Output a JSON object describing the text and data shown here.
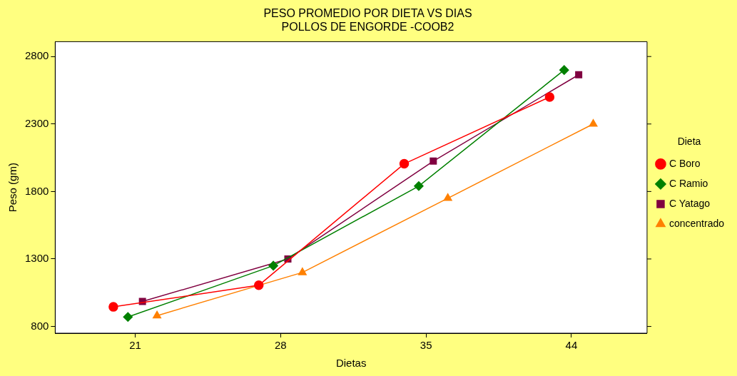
{
  "chart_data": {
    "type": "line",
    "title": [
      "PESO PROMEDIO POR DIETA VS DIAS",
      "POLLOS DE ENGORDE -COOB2"
    ],
    "xlabel": "Dietas",
    "ylabel": "Peso (gm)",
    "legend_title": "Dieta",
    "legend": "right",
    "grid": false,
    "categories": [
      "21",
      "28",
      "35",
      "44"
    ],
    "ylim": [
      750,
      2910
    ],
    "yticks": [
      800,
      1300,
      1800,
      2300,
      2800
    ],
    "series": [
      {
        "name": "C Boro",
        "color": "#ff0000",
        "marker": "circle",
        "values": [
          945,
          1105,
          2005,
          2500
        ]
      },
      {
        "name": "C Ramio",
        "color": "#008000",
        "marker": "diamond",
        "values": [
          870,
          1250,
          1840,
          2700
        ]
      },
      {
        "name": "C Yatago",
        "color": "#800040",
        "marker": "square",
        "values": [
          985,
          1300,
          2025,
          2665
        ]
      },
      {
        "name": "concentrado",
        "color": "#ff8000",
        "marker": "triangle",
        "values": [
          880,
          1200,
          1750,
          2300
        ]
      }
    ]
  }
}
